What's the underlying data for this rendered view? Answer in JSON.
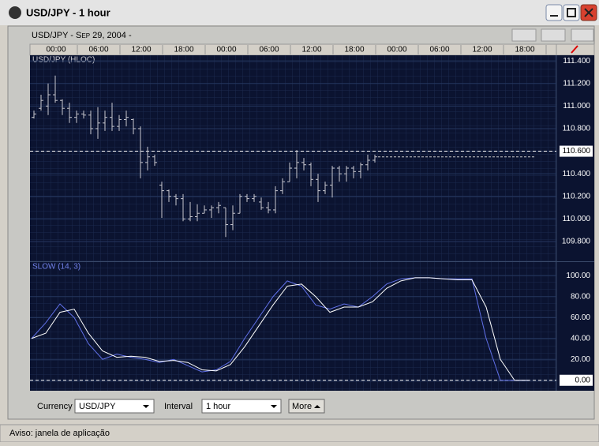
{
  "window": {
    "title": "USD/JPY - 1 hour"
  },
  "header": "USD/JPY - Sep 29, 2004 -",
  "time_labels": [
    "00:00",
    "06:00",
    "12:00",
    "18:00",
    "00:00",
    "06:00",
    "12:00",
    "18:00",
    "00:00",
    "06:00",
    "12:00",
    "18:00"
  ],
  "chart_data": [
    {
      "type": "ohlc",
      "label": "USD/JPY (HLOC)",
      "color": "#c8c8d0",
      "bars": [
        [
          110.9,
          110.96,
          110.89,
          110.93
        ],
        [
          110.98,
          111.1,
          110.96,
          111.05
        ],
        [
          111.0,
          111.2,
          110.92,
          111.1
        ],
        [
          111.1,
          111.27,
          111.03,
          111.05
        ],
        [
          111.05,
          111.06,
          110.92,
          110.98
        ],
        [
          110.98,
          111.03,
          110.85,
          110.9
        ],
        [
          110.9,
          110.96,
          110.85,
          110.93
        ],
        [
          110.93,
          110.96,
          110.89,
          110.92
        ],
        [
          110.92,
          110.96,
          110.75,
          110.8
        ],
        [
          110.8,
          110.99,
          110.71,
          110.85
        ],
        [
          110.85,
          110.96,
          110.78,
          110.9
        ],
        [
          110.9,
          111.03,
          110.78,
          110.82
        ],
        [
          110.82,
          110.92,
          110.78,
          110.88
        ],
        [
          110.88,
          110.96,
          110.82,
          110.9
        ],
        [
          110.88,
          110.89,
          110.75,
          110.8
        ],
        [
          110.8,
          110.82,
          110.36,
          110.5
        ],
        [
          110.5,
          110.64,
          110.43,
          110.55
        ],
        [
          110.55,
          110.57,
          110.47,
          110.5
        ],
        [
          110.3,
          110.33,
          110.01,
          110.25
        ],
        [
          110.25,
          110.26,
          110.15,
          110.2
        ],
        [
          110.2,
          110.22,
          110.12,
          110.18
        ],
        [
          110.18,
          110.22,
          109.98,
          110.0
        ],
        [
          110.0,
          110.15,
          109.98,
          110.02
        ],
        [
          110.02,
          110.13,
          109.98,
          110.05
        ],
        [
          110.05,
          110.12,
          110.05,
          110.08
        ],
        [
          110.08,
          110.12,
          110.01,
          110.1
        ],
        [
          110.1,
          110.15,
          110.05,
          110.12
        ],
        [
          110.1,
          110.1,
          109.84,
          109.95
        ],
        [
          109.95,
          110.12,
          109.9,
          110.05
        ],
        [
          110.05,
          110.22,
          110.05,
          110.2
        ],
        [
          110.2,
          110.22,
          110.15,
          110.18
        ],
        [
          110.18,
          110.22,
          110.15,
          110.2
        ],
        [
          110.15,
          110.19,
          110.08,
          110.1
        ],
        [
          110.1,
          110.15,
          110.05,
          110.08
        ],
        [
          110.08,
          110.29,
          110.05,
          110.25
        ],
        [
          110.25,
          110.36,
          110.22,
          110.33
        ],
        [
          110.33,
          110.5,
          110.33,
          110.45
        ],
        [
          110.45,
          110.61,
          110.36,
          110.5
        ],
        [
          110.5,
          110.54,
          110.43,
          110.48
        ],
        [
          110.48,
          110.5,
          110.29,
          110.35
        ],
        [
          110.35,
          110.4,
          110.15,
          110.25
        ],
        [
          110.25,
          110.33,
          110.22,
          110.3
        ],
        [
          110.3,
          110.47,
          110.19,
          110.45
        ],
        [
          110.45,
          110.47,
          110.33,
          110.4
        ],
        [
          110.4,
          110.47,
          110.33,
          110.45
        ],
        [
          110.45,
          110.47,
          110.36,
          110.42
        ],
        [
          110.42,
          110.5,
          110.36,
          110.48
        ],
        [
          110.48,
          110.57,
          110.43,
          110.52
        ],
        [
          110.52,
          110.57,
          110.5,
          110.55
        ]
      ],
      "projection": 110.55,
      "hline": 110.6,
      "ylim": [
        109.625,
        111.45
      ],
      "yticks": [
        {
          "value": 109.8,
          "label": "109.800"
        },
        {
          "value": 110.0,
          "label": "110.000"
        },
        {
          "value": 110.2,
          "label": "110.200"
        },
        {
          "value": 110.4,
          "label": "110.400"
        },
        {
          "value": 110.6,
          "label": "110.600"
        },
        {
          "value": 110.8,
          "label": "110.800"
        },
        {
          "value": 111.0,
          "label": "111.000"
        },
        {
          "value": 111.2,
          "label": "111.200"
        },
        {
          "value": 111.4,
          "label": "111.400"
        }
      ]
    },
    {
      "type": "line",
      "label": "SLOW (14, 3)",
      "series": [
        {
          "color": "#6070e8",
          "values": [
            40,
            55,
            73,
            60,
            35,
            20,
            25,
            22,
            20,
            17,
            20,
            14,
            8,
            10,
            18,
            40,
            60,
            80,
            95,
            90,
            72,
            68,
            73,
            70,
            80,
            92,
            97,
            98,
            98,
            97,
            97,
            97,
            40,
            0,
            0,
            0
          ]
        },
        {
          "color": "#ffffff",
          "values": [
            40,
            45,
            65,
            68,
            45,
            28,
            22,
            23,
            22,
            18,
            19,
            17,
            10,
            9,
            15,
            32,
            52,
            72,
            90,
            92,
            80,
            65,
            70,
            70,
            75,
            88,
            95,
            98,
            98,
            97,
            96,
            96,
            70,
            20,
            0,
            0
          ]
        }
      ],
      "hline": 0,
      "ylim": [
        -10,
        113
      ],
      "yticks": [
        {
          "value": 0,
          "label": "0.00"
        },
        {
          "value": 20,
          "label": "20.00"
        },
        {
          "value": 40,
          "label": "40.00"
        },
        {
          "value": 60,
          "label": "60.00"
        },
        {
          "value": 80,
          "label": "80.00"
        },
        {
          "value": 100,
          "label": "100.00"
        }
      ]
    }
  ],
  "controls": {
    "currency_label": "Currency",
    "currency": "USD/JPY",
    "interval_label": "Interval",
    "interval": "1 hour",
    "more": "More"
  },
  "status": "Aviso: janela de aplicação"
}
